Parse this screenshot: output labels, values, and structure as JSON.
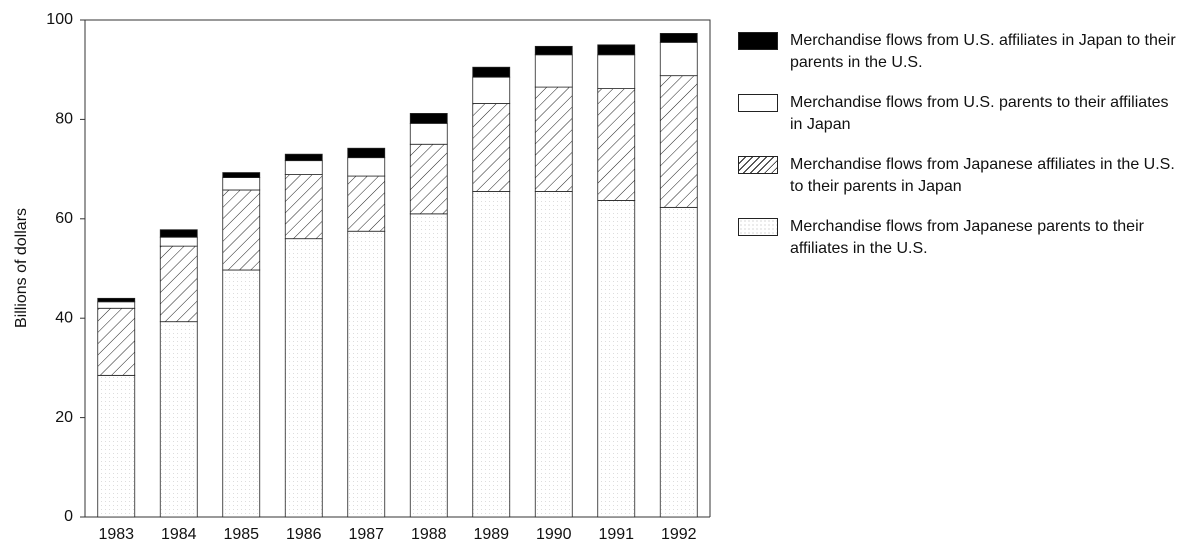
{
  "chart_data": {
    "type": "stacked-bar",
    "y_label": "Billions of dollars",
    "categories": [
      "1983",
      "1984",
      "1985",
      "1986",
      "1987",
      "1988",
      "1989",
      "1990",
      "1991",
      "1992"
    ],
    "series": [
      {
        "name": "Merchandise flows from Japanese parents to their affiliates in the U.S.",
        "color": "#ffffff",
        "pattern": "dots",
        "values": [
          28.5,
          39.3,
          49.7,
          56,
          57.5,
          61,
          65.5,
          65.5,
          63.7,
          62.3
        ]
      },
      {
        "name": "Merchandise flows from Japanese affiliates in the U.S. to their parents in Japan",
        "color": "#ffffff",
        "pattern": "hatch",
        "values": [
          13.5,
          15.2,
          16.1,
          12.9,
          11.1,
          14,
          17.7,
          21,
          22.5,
          26.5
        ]
      },
      {
        "name": "Merchandise flows from U.S. parents to their affiliates in Japan",
        "color": "#ffffff",
        "pattern": "none",
        "values": [
          1.3,
          1.8,
          2.5,
          2.8,
          3.7,
          4.2,
          5.3,
          6.5,
          6.8,
          6.7
        ]
      },
      {
        "name": "Merchandise flows from U.S. affiliates in Japan to their parents in the U.S.",
        "color": "#000000",
        "pattern": "none",
        "values": [
          0.7,
          1.5,
          1,
          1.3,
          1.9,
          2,
          2,
          1.7,
          2,
          1.8
        ]
      }
    ],
    "ylim": [
      0,
      100
    ],
    "yticks": [
      0,
      20,
      40,
      60,
      80,
      100
    ],
    "grid": false,
    "legend": "right"
  }
}
